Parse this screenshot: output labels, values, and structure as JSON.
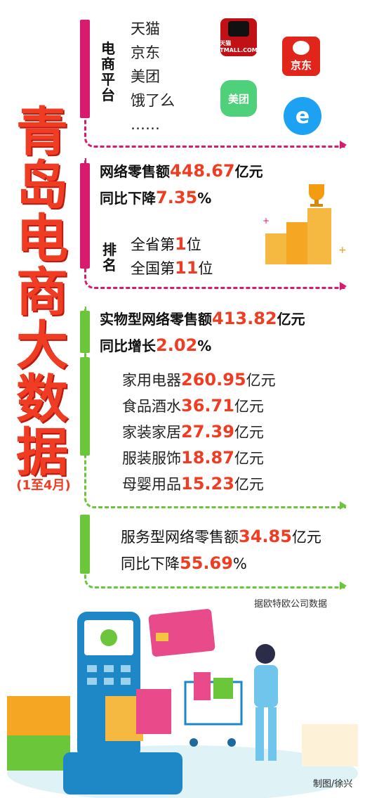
{
  "title_chars": [
    "青",
    "岛",
    "电",
    "商",
    "大",
    "数",
    "据"
  ],
  "subtitle": "(1至4月)",
  "platforms": {
    "label_chars": [
      "电",
      "商",
      "平",
      "台"
    ],
    "items": [
      "天猫",
      "京东",
      "美团",
      "饿了么",
      "……"
    ],
    "logos": {
      "tmall": "天猫 TMALL.COM",
      "jd": "京东",
      "meituan": "美团",
      "eleme": "e"
    }
  },
  "retail": {
    "total_prefix": "网络零售额",
    "total_value": "448.67",
    "total_unit": "亿元",
    "change_prefix": "同比下降",
    "change_value": "7.35",
    "change_unit": "%"
  },
  "ranking": {
    "label_chars": [
      "排",
      "名"
    ],
    "province_prefix": "全省第",
    "province_value": "1",
    "province_unit": "位",
    "national_prefix": "全国第",
    "national_value": "11",
    "national_unit": "位"
  },
  "physical": {
    "total_prefix": "实物型网络零售额",
    "total_value": "413.82",
    "total_unit": "亿元",
    "change_prefix": "同比增长",
    "change_value": "2.02",
    "change_unit": "%",
    "categories": [
      {
        "name": "家用电器",
        "value": "260.95",
        "unit": "亿元"
      },
      {
        "name": "食品酒水",
        "value": "36.71",
        "unit": "亿元"
      },
      {
        "name": "家装家居",
        "value": "27.39",
        "unit": "亿元"
      },
      {
        "name": "服装服饰",
        "value": "18.87",
        "unit": "亿元"
      },
      {
        "name": "母婴用品",
        "value": "15.23",
        "unit": "亿元"
      }
    ]
  },
  "service": {
    "total_prefix": "服务型网络零售额",
    "total_value": "34.85",
    "total_unit": "亿元",
    "change_prefix": "同比下降",
    "change_value": "55.69",
    "change_unit": "%"
  },
  "source": "据欧特欧公司数据",
  "credit": "制图/徐兴",
  "colors": {
    "red": "#f03c22",
    "magenta": "#d81b6e",
    "green": "#6cc63a"
  }
}
